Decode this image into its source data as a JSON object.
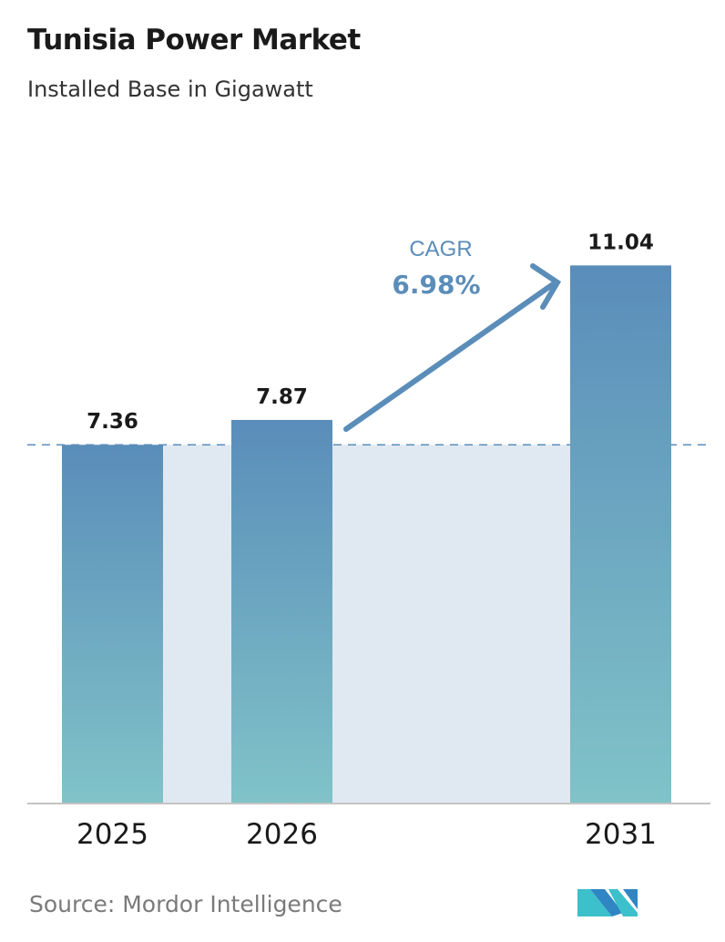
{
  "title": "Tunisia Power Market",
  "subtitle": "Installed Base in Gigawatt",
  "source": "Source:  Mordor Intelligence",
  "logo_text": "Mordor Intelligence",
  "colors": {
    "bar_top": "#5a8dba",
    "bar_bottom": "#80c3c8",
    "band": "#e0e9f1",
    "cagr": "#5b8db9",
    "axis": "#bbbbbb"
  },
  "chart_data": {
    "type": "bar",
    "title": "Tunisia Power Market",
    "subtitle": "Installed Base in Gigawatt",
    "categories": [
      "2025",
      "2026",
      "2031"
    ],
    "values": [
      7.36,
      7.87,
      11.04
    ],
    "value_labels": [
      "7.36",
      "7.87",
      "11.04"
    ],
    "ylim": [
      0,
      11.04
    ],
    "grid": false,
    "reference_line": 7.36,
    "annotation": {
      "label": "CAGR",
      "value": "6.98%"
    }
  }
}
